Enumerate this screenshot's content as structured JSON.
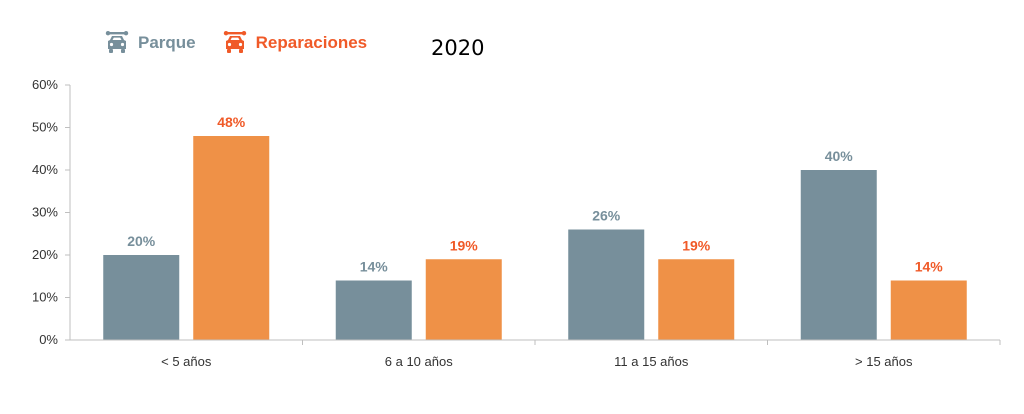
{
  "chart_data": {
    "type": "bar",
    "title": "2020",
    "categories": [
      "< 5 años",
      "6 a 10 años",
      "11 a 15 años",
      "> 15 años"
    ],
    "series": [
      {
        "name": "Parque",
        "color": "#778f9b",
        "values": [
          20,
          14,
          26,
          40
        ],
        "labels": [
          "20%",
          "14%",
          "26%",
          "40%"
        ]
      },
      {
        "name": "Reparaciones",
        "color": "#ef9147",
        "label_color": "#f05a28",
        "values": [
          48,
          19,
          19,
          14
        ],
        "labels": [
          "48%",
          "19%",
          "19%",
          "14%"
        ]
      }
    ],
    "ylim": [
      0,
      60
    ],
    "yticks": [
      0,
      10,
      20,
      30,
      40,
      50,
      60
    ],
    "ytick_labels": [
      "0%",
      "10%",
      "20%",
      "30%",
      "40%",
      "50%",
      "60%"
    ],
    "xlabel": "",
    "ylabel": "",
    "grid": false,
    "legend_position": "top-left",
    "legend_icons": [
      "car-repair-icon",
      "car-repair-icon"
    ]
  }
}
